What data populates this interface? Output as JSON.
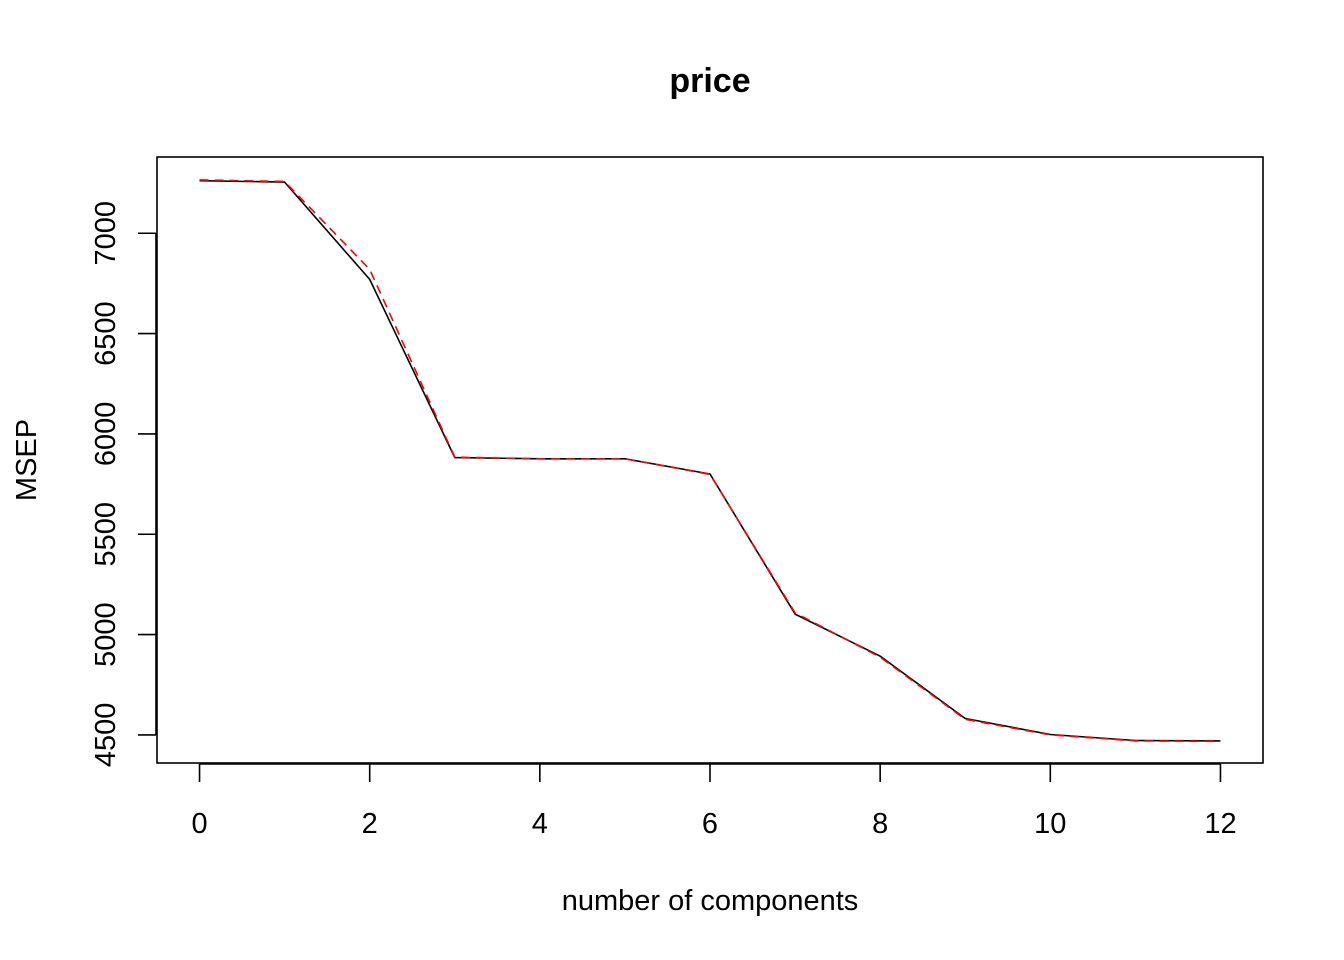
{
  "chart_data": {
    "type": "line",
    "title": "price",
    "xlabel": "number of components",
    "ylabel": "MSEP",
    "xlim": [
      -0.5,
      12.5
    ],
    "ylim": [
      4360,
      7380
    ],
    "x_ticks": [
      0,
      2,
      4,
      6,
      8,
      10,
      12
    ],
    "y_ticks": [
      4500,
      5000,
      5500,
      6000,
      6500,
      7000
    ],
    "grid": false,
    "legend": "none",
    "x": [
      0,
      1,
      2,
      3,
      4,
      5,
      6,
      7,
      8,
      9,
      10,
      11,
      12
    ],
    "series": [
      {
        "color": "#000000",
        "dash": "solid",
        "values": [
          7262,
          7255,
          6770,
          5882,
          5876,
          5876,
          5800,
          5102,
          4892,
          4582,
          4502,
          4472,
          4470
        ]
      },
      {
        "color": "#ff0000",
        "dash": "dashed",
        "values": [
          7266,
          7258,
          6820,
          5884,
          5876,
          5876,
          5798,
          5108,
          4888,
          4578,
          4500,
          4470,
          4468
        ]
      }
    ]
  }
}
